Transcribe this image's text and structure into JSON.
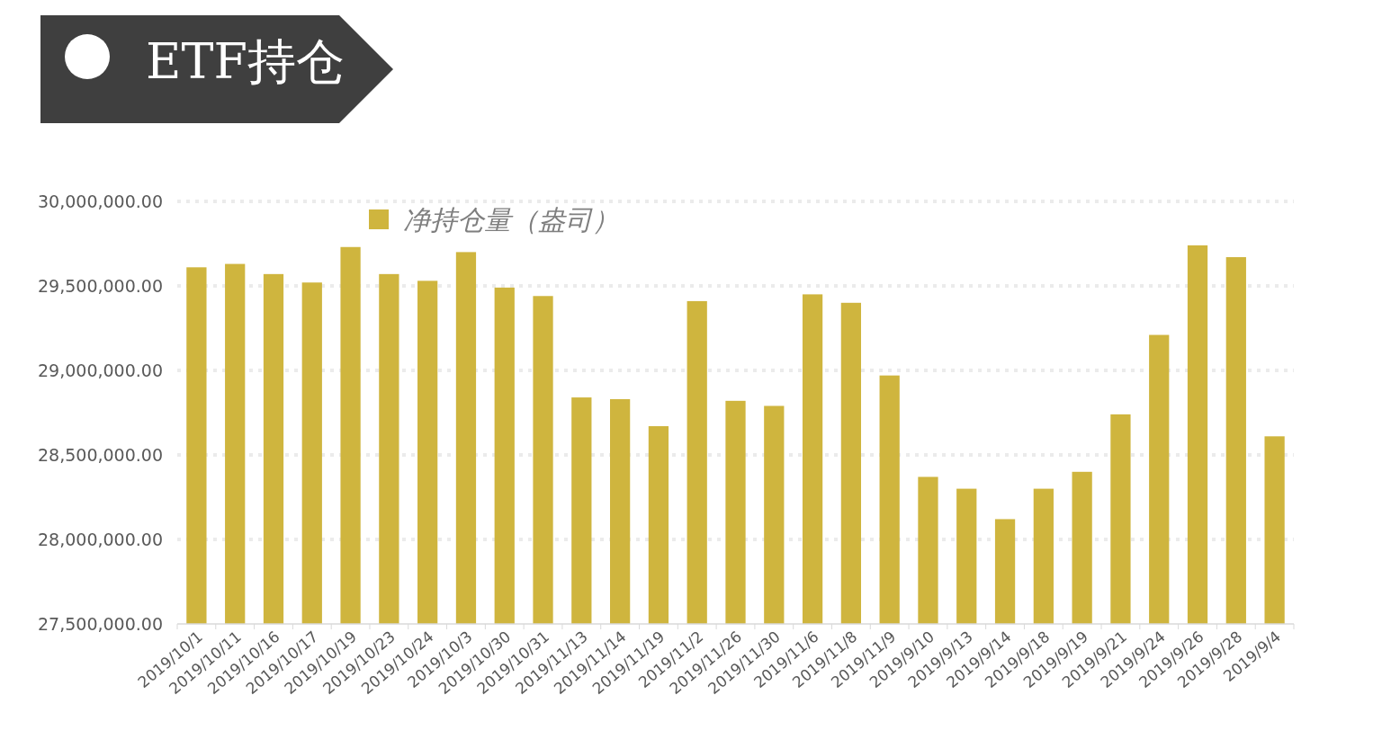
{
  "chart_data": {
    "type": "bar",
    "title": "ETF持仓",
    "categories": [
      "2019/10/1",
      "2019/10/11",
      "2019/10/16",
      "2019/10/17",
      "2019/10/19",
      "2019/10/23",
      "2019/10/24",
      "2019/10/3",
      "2019/10/30",
      "2019/10/31",
      "2019/11/13",
      "2019/11/14",
      "2019/11/19",
      "2019/11/2",
      "2019/11/26",
      "2019/11/30",
      "2019/11/6",
      "2019/11/8",
      "2019/11/9",
      "2019/9/10",
      "2019/9/13",
      "2019/9/14",
      "2019/9/18",
      "2019/9/19",
      "2019/9/21",
      "2019/9/24",
      "2019/9/26",
      "2019/9/28",
      "2019/9/4"
    ],
    "series": [
      {
        "name": "净持仓量（盎司）",
        "color": "#cfb53e",
        "values": [
          29610000,
          29630000,
          29570000,
          29520000,
          29730000,
          29570000,
          29530000,
          29700000,
          29490000,
          29440000,
          28840000,
          28830000,
          28670000,
          29410000,
          28820000,
          28790000,
          29450000,
          29400000,
          28970000,
          28370000,
          28300000,
          28120000,
          28300000,
          28400000,
          28740000,
          29210000,
          29740000,
          29670000,
          28610000
        ]
      }
    ],
    "ylim": [
      27500000,
      30000000
    ],
    "yticks": [
      {
        "value": 27500000,
        "label": "27,500,000.00"
      },
      {
        "value": 28000000,
        "label": "28,000,000.00"
      },
      {
        "value": 28500000,
        "label": "28,500,000.00"
      },
      {
        "value": 29000000,
        "label": "29,000,000.00"
      },
      {
        "value": 29500000,
        "label": "29,500,000.00"
      },
      {
        "value": 30000000,
        "label": "30,000,000.00"
      }
    ],
    "grid": "y",
    "legend": "top left"
  }
}
